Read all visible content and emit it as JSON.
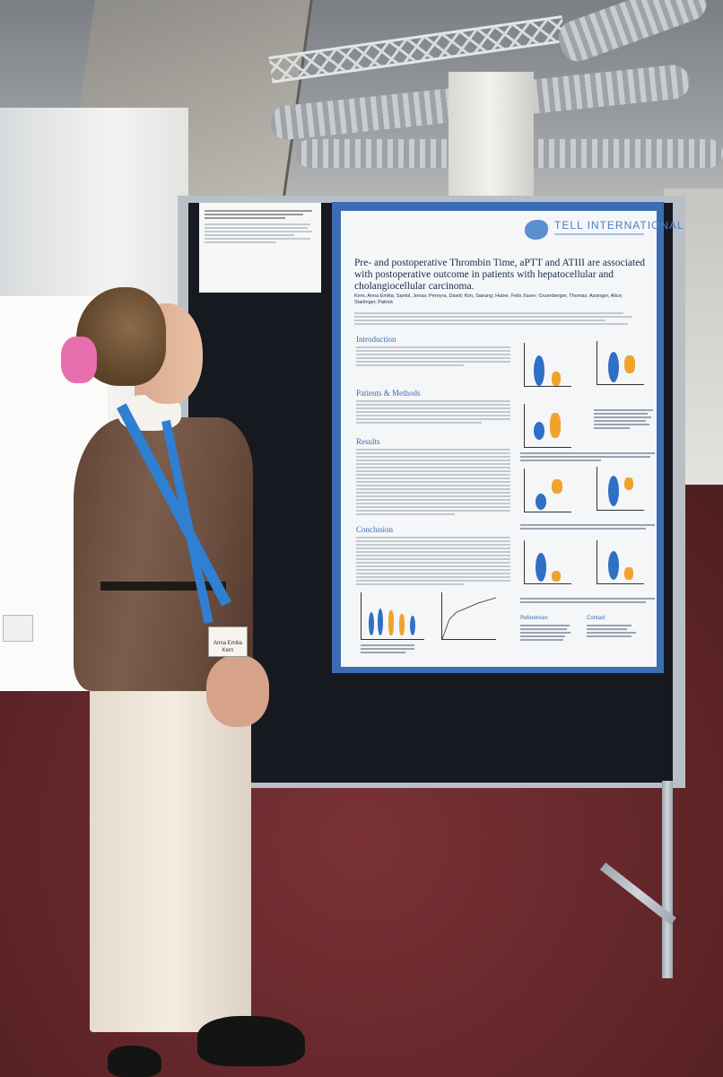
{
  "poster": {
    "logo_name": "TELL",
    "logo_line2": "INTERNATIONAL",
    "title": "Pre- and postoperative Thrombin Time, aPTT and ATIII are associated with postoperative outcome in patients with hepatocellular and cholangiocellular carcinoma.",
    "authors": "Kern, Anna Emilia; Santol, Jonas; Pereyra, David; Kim, Sairang; Huber, Felix Xaver; Gruenberger, Thomas; Assinger, Alice; Starlinger, Patrick",
    "sections": {
      "introduction": "Introduction",
      "patients_methods": "Patients & Methods",
      "results": "Results",
      "conclusion": "Conclusion",
      "references": "References",
      "contact": "Contact"
    }
  },
  "badge": {
    "name": "Anna Emilia Kern"
  },
  "colors": {
    "poster_border": "#3b6db5",
    "violin_blue": "#2f6fc6",
    "violin_orange": "#f0a32c",
    "floor": "#6b2a2e"
  }
}
